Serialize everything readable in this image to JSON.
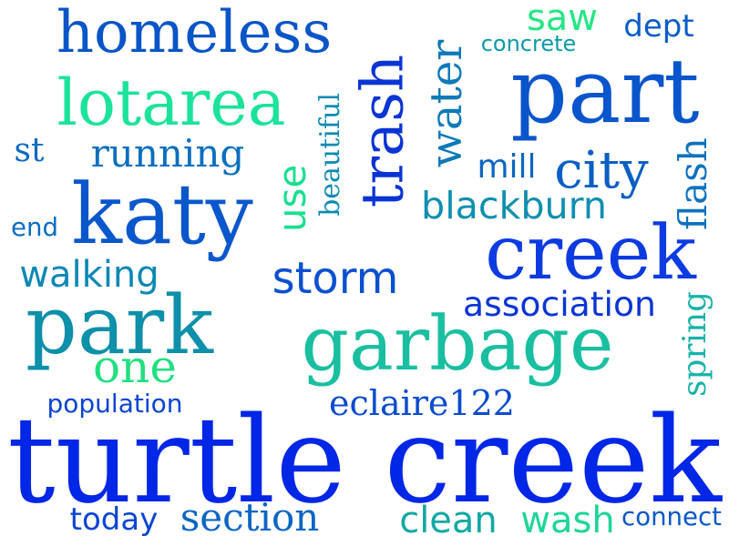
{
  "words": [
    {
      "text": "turtle creek",
      "color": "#0026E6",
      "orientation": "horizontal"
    },
    {
      "text": "garbage",
      "color": "#19BFA0",
      "orientation": "horizontal"
    },
    {
      "text": "creek",
      "color": "#0C3BE0",
      "orientation": "horizontal"
    },
    {
      "text": "katy",
      "color": "#0A57CC",
      "orientation": "horizontal"
    },
    {
      "text": "park",
      "color": "#0E8FAA",
      "orientation": "horizontal"
    },
    {
      "text": "part",
      "color": "#0A55CC",
      "orientation": "horizontal"
    },
    {
      "text": "trash",
      "color": "#0A35D4",
      "orientation": "vertical"
    },
    {
      "text": "lotarea",
      "color": "#1CE39A",
      "orientation": "horizontal"
    },
    {
      "text": "homeless",
      "color": "#0A55C7",
      "orientation": "horizontal"
    },
    {
      "text": "storm",
      "color": "#0A50D0",
      "orientation": "horizontal"
    },
    {
      "text": "water",
      "color": "#0D7AB8",
      "orientation": "vertical"
    },
    {
      "text": "use",
      "color": "#1ADF90",
      "orientation": "vertical"
    },
    {
      "text": "city",
      "color": "#0A5FC4",
      "orientation": "horizontal"
    },
    {
      "text": "one",
      "color": "#22E080",
      "orientation": "horizontal"
    },
    {
      "text": "saw",
      "color": "#25E685",
      "orientation": "horizontal"
    },
    {
      "text": "flash",
      "color": "#0D72BE",
      "orientation": "vertical"
    },
    {
      "text": "blackburn",
      "color": "#0E8FB0",
      "orientation": "horizontal"
    },
    {
      "text": "association",
      "color": "#0A35D4",
      "orientation": "horizontal"
    },
    {
      "text": "running",
      "color": "#0A6FBE",
      "orientation": "horizontal"
    },
    {
      "text": "walking",
      "color": "#0C88B5",
      "orientation": "horizontal"
    },
    {
      "text": "eclaire122",
      "color": "#0A4BCE",
      "orientation": "horizontal"
    },
    {
      "text": "clean",
      "color": "#14A8A4",
      "orientation": "horizontal"
    },
    {
      "text": "wash",
      "color": "#1ED699",
      "orientation": "horizontal"
    },
    {
      "text": "section",
      "color": "#0A66C4",
      "orientation": "horizontal"
    },
    {
      "text": "today",
      "color": "#0A45D2",
      "orientation": "horizontal"
    },
    {
      "text": "mill",
      "color": "#0A66C2",
      "orientation": "horizontal"
    },
    {
      "text": "spring",
      "color": "#18B3A8",
      "orientation": "vertical"
    },
    {
      "text": "dept",
      "color": "#0A5DC8",
      "orientation": "horizontal"
    },
    {
      "text": "beautiful",
      "color": "#0C8AB2",
      "orientation": "vertical"
    },
    {
      "text": "st",
      "color": "#0A6AC0",
      "orientation": "horizontal"
    },
    {
      "text": "population",
      "color": "#0A45D2",
      "orientation": "horizontal"
    },
    {
      "text": "connect",
      "color": "#0A58C8",
      "orientation": "horizontal"
    },
    {
      "text": "concrete",
      "color": "#0C9AA8",
      "orientation": "horizontal"
    },
    {
      "text": "end",
      "color": "#0A6DC0",
      "orientation": "horizontal"
    }
  ]
}
